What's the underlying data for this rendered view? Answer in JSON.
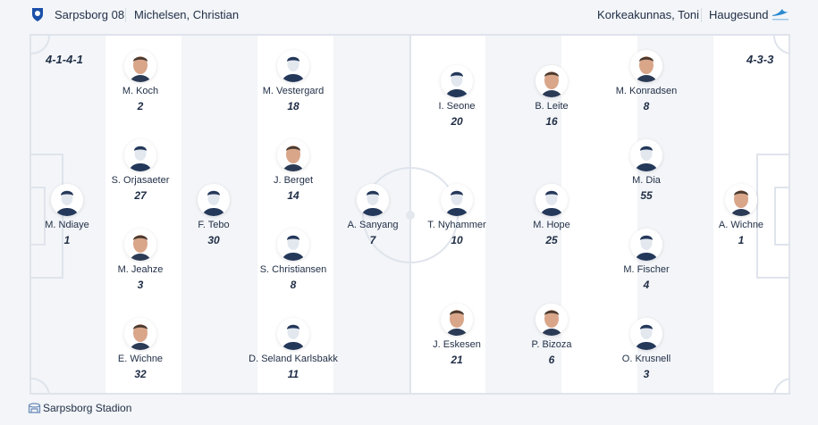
{
  "header": {
    "home_team": "Sarpsborg 08",
    "home_coach": "Michelsen, Christian",
    "away_coach": "Korkeakunnas, Toni",
    "away_team": "Haugesund"
  },
  "colors": {
    "home_logo": "#1b4fa8",
    "away_logo": "#2a8ad0",
    "line": "#dfe4ec",
    "text": "#1f2d45"
  },
  "home": {
    "formation": "4-1-4-1",
    "players": [
      {
        "name": "M. Ndiaye",
        "number": "1",
        "photo": false
      },
      {
        "name": "M. Koch",
        "number": "2",
        "photo": true
      },
      {
        "name": "S. Orjasaeter",
        "number": "27",
        "photo": false
      },
      {
        "name": "M. Jeahze",
        "number": "3",
        "photo": true
      },
      {
        "name": "E. Wichne",
        "number": "32",
        "photo": true
      },
      {
        "name": "F. Tebo",
        "number": "30",
        "photo": false
      },
      {
        "name": "M. Vestergard",
        "number": "18",
        "photo": false
      },
      {
        "name": "J. Berget",
        "number": "14",
        "photo": true
      },
      {
        "name": "S. Christiansen",
        "number": "8",
        "photo": false
      },
      {
        "name": "D. Seland Karlsbakk",
        "number": "11",
        "photo": false
      },
      {
        "name": "A. Sanyang",
        "number": "7",
        "photo": false
      }
    ]
  },
  "away": {
    "formation": "4-3-3",
    "players": [
      {
        "name": "T. Nyhammer",
        "number": "10",
        "photo": false
      },
      {
        "name": "I. Seone",
        "number": "20",
        "photo": false
      },
      {
        "name": "J. Eskesen",
        "number": "21",
        "photo": true
      },
      {
        "name": "B. Leite",
        "number": "16",
        "photo": true
      },
      {
        "name": "M. Hope",
        "number": "25",
        "photo": false
      },
      {
        "name": "P. Bizoza",
        "number": "6",
        "photo": true
      },
      {
        "name": "M. Konradsen",
        "number": "8",
        "photo": true
      },
      {
        "name": "M. Dia",
        "number": "55",
        "photo": false
      },
      {
        "name": "M. Fischer",
        "number": "4",
        "photo": false
      },
      {
        "name": "O. Krusnell",
        "number": "3",
        "photo": false
      },
      {
        "name": "A. Wichne",
        "number": "1",
        "photo": true
      }
    ]
  },
  "venue": {
    "name": "Sarpsborg Stadion",
    "icon": "stadium-icon"
  }
}
